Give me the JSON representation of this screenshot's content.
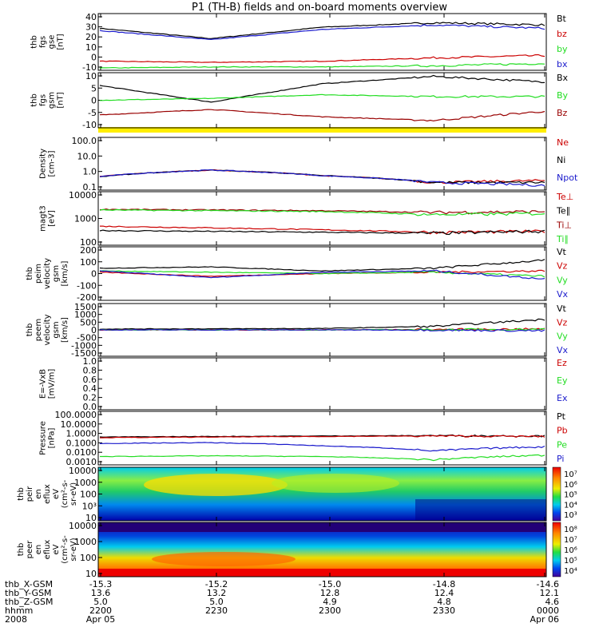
{
  "title": "P1 (TH-B) fields and on-board moments overview",
  "colors": {
    "black": "#000000",
    "red": "#cc0000",
    "green": "#22dd22",
    "blue": "#1a1acc",
    "dark_red": "#990000",
    "yellow": "#ffee00"
  },
  "panels": [
    {
      "id": "fgs-gse",
      "ylabel": [
        "thb",
        "fgs",
        "gse",
        "[nT]"
      ],
      "ylim": [
        -10,
        40
      ],
      "yticks": [
        "40",
        "30",
        "20",
        "10",
        "0",
        "-10"
      ],
      "legend": [
        {
          "label": "Bt",
          "color": "#000000"
        },
        {
          "label": "bz",
          "color": "#cc0000"
        },
        {
          "label": "by",
          "color": "#22dd22"
        },
        {
          "label": "bx",
          "color": "#1a1acc"
        }
      ]
    },
    {
      "id": "fgs-gsm",
      "ylabel": [
        "thb",
        "fgs",
        "gsm",
        "[nT]"
      ],
      "ylim": [
        -15,
        15
      ],
      "yticks": [
        "10",
        "5",
        "0",
        "-5",
        "-10"
      ],
      "legend": [
        {
          "label": "Bx",
          "color": "#000000"
        },
        {
          "label": "By",
          "color": "#22dd22"
        },
        {
          "label": "Bz",
          "color": "#990000"
        }
      ]
    },
    {
      "id": "density",
      "ylabel": [
        "Density",
        "[cm-3]"
      ],
      "ylim": [
        0.05,
        100
      ],
      "log": true,
      "yticks": [
        "100.0",
        "10.0",
        "1.0",
        "0.1"
      ],
      "legend": [
        {
          "label": "Ne",
          "color": "#cc0000"
        },
        {
          "label": "Ni",
          "color": "#000000"
        },
        {
          "label": "Npot",
          "color": "#1a1acc"
        }
      ]
    },
    {
      "id": "temperature",
      "ylabel": [
        "magt3",
        "[eV]"
      ],
      "ylim": [
        20,
        10000
      ],
      "log": true,
      "yticks": [
        "10000",
        "1000",
        "100"
      ],
      "legend": [
        {
          "label": "Te⊥",
          "color": "#cc0000"
        },
        {
          "label": "Te∥",
          "color": "#000000"
        },
        {
          "label": "Ti⊥",
          "color": "#990000"
        },
        {
          "label": "Ti∥",
          "color": "#22dd22"
        }
      ]
    },
    {
      "id": "peim-velocity",
      "ylabel": [
        "thb",
        "peim",
        "velocity",
        "gsm",
        "[km/s]"
      ],
      "ylim": [
        -200,
        200
      ],
      "yticks": [
        "200",
        "100",
        "0",
        "-100",
        "-200"
      ],
      "legend": [
        {
          "label": "Vt",
          "color": "#000000"
        },
        {
          "label": "Vz",
          "color": "#cc0000"
        },
        {
          "label": "Vy",
          "color": "#22dd22"
        },
        {
          "label": "Vx",
          "color": "#1a1acc"
        }
      ]
    },
    {
      "id": "peem-velocity",
      "ylabel": [
        "thb",
        "peem",
        "velocity",
        "gsm",
        "[km/s]"
      ],
      "ylim": [
        -1500,
        1500
      ],
      "yticks": [
        "1500",
        "1000",
        "500",
        "0",
        "-500",
        "-1000",
        "-1500"
      ],
      "legend": [
        {
          "label": "Vt",
          "color": "#000000"
        },
        {
          "label": "Vz",
          "color": "#cc0000"
        },
        {
          "label": "Vy",
          "color": "#22dd22"
        },
        {
          "label": "Vx",
          "color": "#1a1acc"
        }
      ]
    },
    {
      "id": "efield",
      "ylabel": [
        "E=-VxB",
        "[mV/m]"
      ],
      "ylim": [
        0,
        1
      ],
      "yticks": [
        "1.0",
        "0.8",
        "0.6",
        "0.4",
        "0.2",
        "0.0"
      ],
      "legend": [
        {
          "label": "Ez",
          "color": "#cc0000"
        },
        {
          "label": "Ey",
          "color": "#22dd22"
        },
        {
          "label": "Ex",
          "color": "#1a1acc"
        }
      ]
    },
    {
      "id": "pressure",
      "ylabel": [
        "Pressure",
        "[nPa]"
      ],
      "ylim": [
        0.001,
        100
      ],
      "log": true,
      "yticks": [
        "100.0000",
        "10.0000",
        "1.0000",
        "0.1000",
        "0.0100",
        "0.0010"
      ],
      "legend": [
        {
          "label": "Pt",
          "color": "#000000"
        },
        {
          "label": "Pb",
          "color": "#cc0000"
        },
        {
          "label": "Pe",
          "color": "#22dd22"
        },
        {
          "label": "Pi",
          "color": "#1a1acc"
        }
      ]
    },
    {
      "id": "peir-spectrogram",
      "ylabel": [
        "thb",
        "peir",
        "en",
        "eflux",
        "eV",
        "(cm²-s-",
        "sr-eV)"
      ],
      "yticks": [
        "10000",
        "1000",
        "100",
        "10³",
        "10"
      ],
      "colorbar": [
        "10⁷",
        "10⁶",
        "10⁵",
        "10⁴",
        "10³"
      ]
    },
    {
      "id": "peer-spectrogram",
      "ylabel": [
        "thb",
        "peer",
        "en",
        "eflux",
        "eV",
        "(cm²-s-",
        "sr-eV)"
      ],
      "yticks": [
        "10000",
        "1000",
        "100",
        "10"
      ],
      "colorbar": [
        "10⁸",
        "10⁷",
        "10⁶",
        "10⁵",
        "10⁴"
      ]
    }
  ],
  "footer": {
    "rows": [
      {
        "label": "thb_X-GSM",
        "values": [
          "-15.3",
          "-15.2",
          "-15.0",
          "-14.8",
          "-14.6"
        ]
      },
      {
        "label": "thb_Y-GSM",
        "values": [
          "13.6",
          "13.2",
          "12.8",
          "12.4",
          "12.1"
        ]
      },
      {
        "label": "thb_Z-GSM",
        "values": [
          "5.0",
          "5.0",
          "4.9",
          "4.8",
          "4.6"
        ]
      },
      {
        "label": "hhmm",
        "values": [
          "2200",
          "2230",
          "2300",
          "2330",
          "0000"
        ]
      },
      {
        "label": "2008",
        "values": [
          "Apr 05",
          "",
          "",
          "",
          "Apr 06"
        ]
      }
    ]
  },
  "chart_data": {
    "type": "line",
    "title": "P1 (TH-B) fields and on-board moments overview",
    "x": [
      "2200",
      "2230",
      "2300",
      "2330",
      "0000"
    ],
    "xlabel": "hhmm",
    "panels": [
      {
        "id": "fgs-gse",
        "ylim": [
          -10,
          40
        ],
        "series": [
          {
            "name": "Bt",
            "values": [
              27,
              18,
              28,
              32,
              30
            ]
          },
          {
            "name": "bz",
            "values": [
              -2,
              -3,
              -2,
              1,
              3
            ]
          },
          {
            "name": "by",
            "values": [
              -8,
              -7,
              -7,
              -6,
              -4
            ]
          },
          {
            "name": "bx",
            "values": [
              25,
              17,
              26,
              30,
              27
            ]
          }
        ]
      },
      {
        "id": "fgs-gsm",
        "ylim": [
          -15,
          15
        ],
        "series": [
          {
            "name": "Bx",
            "values": [
              8,
              -1,
              9,
              13,
              10
            ]
          },
          {
            "name": "By",
            "values": [
              0,
              1,
              3,
              2,
              2
            ]
          },
          {
            "name": "Bz",
            "values": [
              -8,
              -5,
              -9,
              -11,
              -6
            ]
          }
        ]
      },
      {
        "id": "density",
        "ylim": [
          0.05,
          100
        ],
        "log": true,
        "series": [
          {
            "name": "Ne",
            "values": [
              0.35,
              0.9,
              0.4,
              0.15,
              0.2
            ]
          },
          {
            "name": "Ni",
            "values": [
              0.35,
              0.9,
              0.4,
              0.15,
              0.15
            ]
          },
          {
            "name": "Npot",
            "values": [
              0.35,
              0.9,
              0.4,
              0.15,
              0.1
            ]
          }
        ]
      },
      {
        "id": "temperature",
        "ylim": [
          20,
          10000
        ],
        "log": true,
        "series": [
          {
            "name": "Te⊥",
            "values": [
              180,
              150,
              120,
              90,
              100
            ]
          },
          {
            "name": "Te∥",
            "values": [
              110,
              100,
              90,
              80,
              100
            ]
          },
          {
            "name": "Ti⊥",
            "values": [
              1300,
              1200,
              1100,
              900,
              1000
            ]
          },
          {
            "name": "Ti∥",
            "values": [
              1200,
              1100,
              1000,
              700,
              800
            ]
          }
        ]
      },
      {
        "id": "peim-velocity",
        "ylim": [
          -200,
          200
        ],
        "series": [
          {
            "name": "Vt",
            "values": [
              40,
              50,
              20,
              40,
              100
            ]
          },
          {
            "name": "Vz",
            "values": [
              10,
              -20,
              0,
              10,
              20
            ]
          },
          {
            "name": "Vy",
            "values": [
              20,
              10,
              0,
              10,
              -20
            ]
          },
          {
            "name": "Vx",
            "values": [
              20,
              -30,
              10,
              20,
              -40
            ]
          }
        ]
      },
      {
        "id": "peem-velocity",
        "ylim": [
          -1500,
          1500
        ],
        "series": [
          {
            "name": "Vt",
            "values": [
              50,
              60,
              80,
              200,
              600
            ]
          },
          {
            "name": "Vz",
            "values": [
              0,
              0,
              0,
              20,
              50
            ]
          },
          {
            "name": "Vy",
            "values": [
              0,
              0,
              0,
              10,
              40
            ]
          },
          {
            "name": "Vx",
            "values": [
              0,
              0,
              0,
              -10,
              -50
            ]
          }
        ]
      },
      {
        "id": "pressure",
        "ylim": [
          0.001,
          100
        ],
        "log": true,
        "series": [
          {
            "name": "Pt",
            "values": [
              0.4,
              0.45,
              0.5,
              0.55,
              0.5
            ]
          },
          {
            "name": "Pb",
            "values": [
              0.35,
              0.4,
              0.45,
              0.5,
              0.45
            ]
          },
          {
            "name": "Pe",
            "values": [
              0.006,
              0.007,
              0.006,
              0.003,
              0.008
            ]
          },
          {
            "name": "Pi",
            "values": [
              0.1,
              0.12,
              0.06,
              0.02,
              0.05
            ]
          }
        ]
      }
    ]
  }
}
